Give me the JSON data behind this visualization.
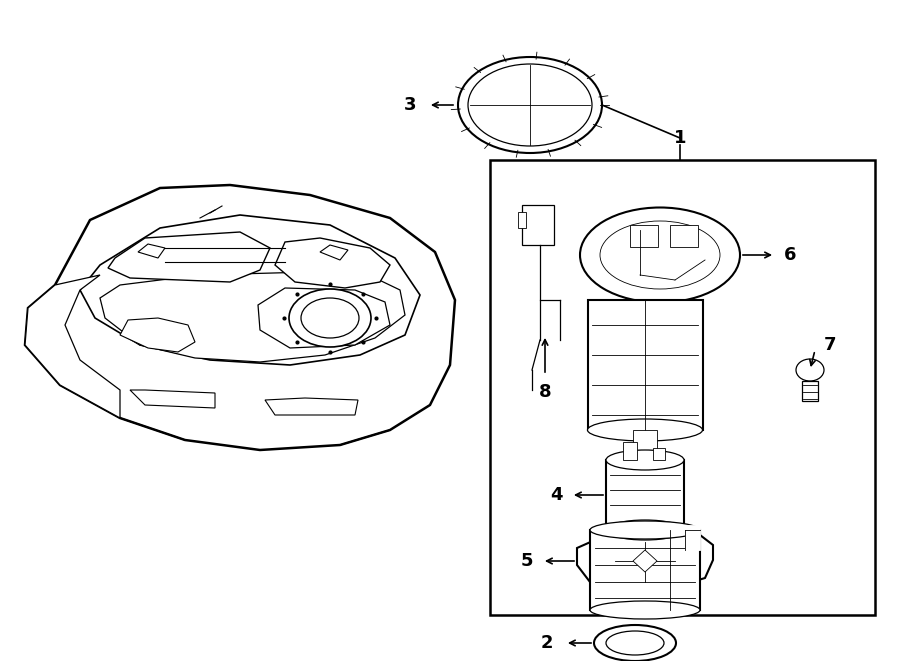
{
  "bg_color": "#ffffff",
  "line_color": "#000000",
  "lw_outer": 1.5,
  "lw_inner": 0.9,
  "lw_detail": 0.6,
  "figw": 9.0,
  "figh": 6.61,
  "dpi": 100
}
